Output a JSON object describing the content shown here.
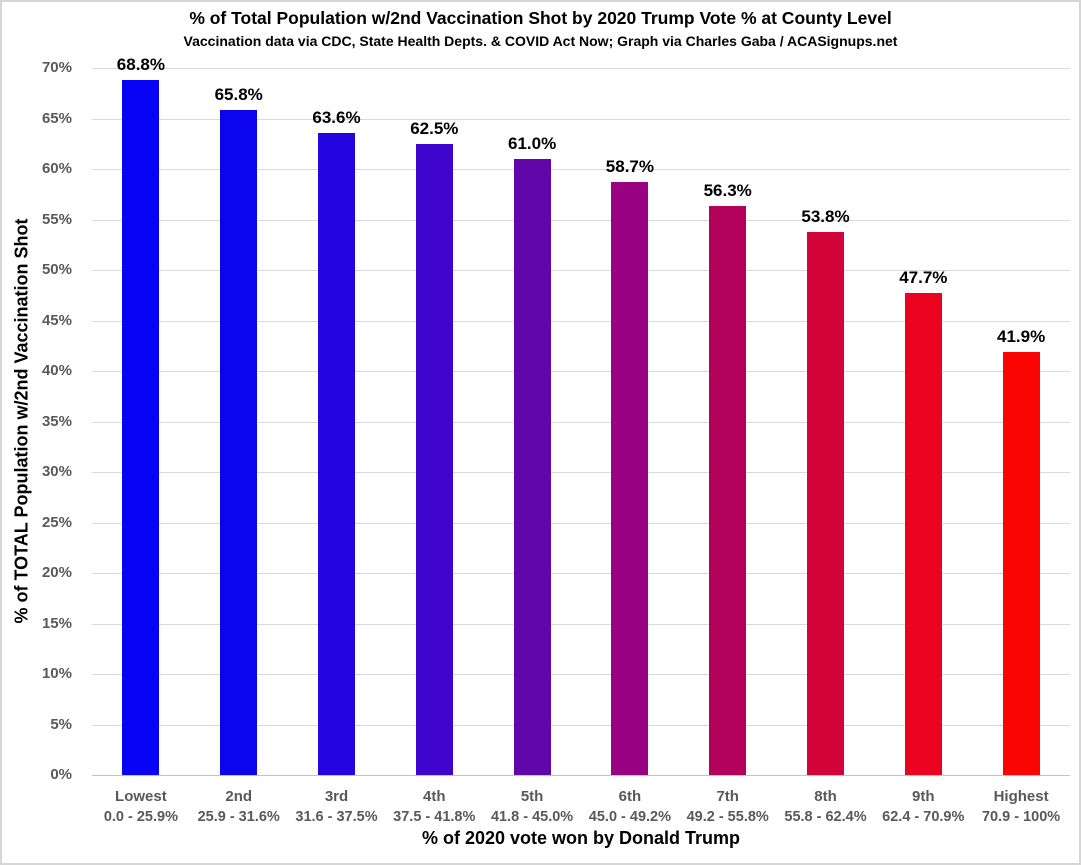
{
  "title": "% of Total Population w/2nd Vaccination Shot by 2020 Trump Vote % at County Level",
  "subtitle": "Vaccination data via CDC, State Health Depts. & COVID Act Now; Graph via Charles Gaba / ACASignups.net",
  "chart_data": {
    "type": "bar",
    "title": "% of Total Population w/2nd Vaccination Shot by 2020 Trump Vote % at County Level",
    "subtitle": "Vaccination data via CDC, State Health Depts. & COVID Act Now; Graph via Charles Gaba / ACASignups.net",
    "xlabel": "% of 2020 vote won by Donald Trump",
    "ylabel": "% of TOTAL Population w/2nd Vaccination Shot",
    "ylim": [
      0,
      70
    ],
    "ytick_step": 5,
    "ytick_suffix": "%",
    "grid": true,
    "legend": "none",
    "categories": [
      "Lowest",
      "2nd",
      "3rd",
      "4th",
      "5th",
      "6th",
      "7th",
      "8th",
      "9th",
      "Highest"
    ],
    "category_ranges": [
      "0.0 - 25.9%",
      "25.9 - 31.6%",
      "31.6 - 37.5%",
      "37.5 - 41.8%",
      "41.8 - 45.0%",
      "45.0 - 49.2%",
      "49.2 - 55.8%",
      "55.8 - 62.4%",
      "62.4 - 70.9%",
      "70.9 - 100%"
    ],
    "values": [
      68.8,
      65.8,
      63.6,
      62.5,
      61.0,
      58.7,
      56.3,
      53.8,
      47.7,
      41.9
    ],
    "value_labels": [
      "68.8%",
      "65.8%",
      "63.6%",
      "62.5%",
      "61.0%",
      "58.7%",
      "56.3%",
      "53.8%",
      "47.7%",
      "41.9%"
    ],
    "bar_colors": [
      "#0703F4",
      "#0D04EF",
      "#2404E1",
      "#3F05CD",
      "#6107A9",
      "#980283",
      "#B3025B",
      "#D20338",
      "#EA041F",
      "#FB0404"
    ]
  },
  "colors": {
    "tick_label": "#595959",
    "gridline": "#D9D9D9",
    "axis_title": "#000000",
    "value_label": "#000000",
    "background": "#FFFFFF",
    "border": "#D6D6D6"
  }
}
